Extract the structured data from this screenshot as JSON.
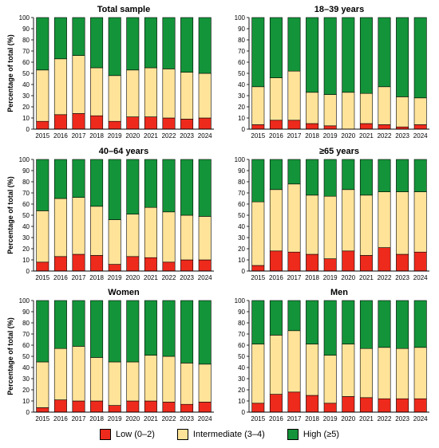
{
  "colors": {
    "low": "#ee2a1c",
    "intermediate": "#ffe399",
    "high": "#14943a"
  },
  "legend": [
    {
      "key": "low",
      "label": "Low (0–2)"
    },
    {
      "key": "intermediate",
      "label": "Intermediate (3–4)"
    },
    {
      "key": "high",
      "label": "High (≥5)"
    }
  ],
  "chart_data": [
    {
      "type": "bar",
      "stacked": true,
      "title": "Total sample",
      "ylabel": "Percentage of total (%)",
      "categories": [
        "2015",
        "2016",
        "2017",
        "2018",
        "2019",
        "2020",
        "2021",
        "2022",
        "2023",
        "2024"
      ],
      "ylim": [
        0,
        100
      ],
      "yticks": [
        0,
        10,
        20,
        30,
        40,
        50,
        60,
        70,
        80,
        90,
        100
      ],
      "series": [
        {
          "name": "Low (0–2)",
          "key": "low",
          "values": [
            7,
            13,
            14,
            12,
            7,
            11,
            11,
            10,
            9,
            10
          ]
        },
        {
          "name": "Intermediate (3–4)",
          "key": "intermediate",
          "values": [
            46,
            50,
            52,
            43,
            41,
            42,
            44,
            44,
            42,
            40
          ]
        },
        {
          "name": "High (≥5)",
          "key": "high",
          "values": [
            47,
            37,
            34,
            45,
            52,
            47,
            45,
            46,
            49,
            50
          ]
        }
      ]
    },
    {
      "type": "bar",
      "stacked": true,
      "title": "18–39 years",
      "ylabel": "",
      "categories": [
        "2015",
        "2016",
        "2017",
        "2018",
        "2019",
        "2020",
        "2021",
        "2022",
        "2023",
        "2024"
      ],
      "ylim": [
        0,
        100
      ],
      "yticks": [
        0,
        10,
        20,
        30,
        40,
        50,
        60,
        70,
        80,
        90,
        100
      ],
      "series": [
        {
          "name": "Low (0–2)",
          "key": "low",
          "values": [
            4,
            8,
            8,
            5,
            3,
            0,
            5,
            4,
            2,
            4
          ]
        },
        {
          "name": "Intermediate (3–4)",
          "key": "intermediate",
          "values": [
            34,
            38,
            44,
            28,
            28,
            33,
            27,
            34,
            27,
            24
          ]
        },
        {
          "name": "High (≥5)",
          "key": "high",
          "values": [
            62,
            54,
            48,
            67,
            69,
            67,
            68,
            62,
            71,
            72
          ]
        }
      ]
    },
    {
      "type": "bar",
      "stacked": true,
      "title": "40–64 years",
      "ylabel": "Percentage of total (%)",
      "categories": [
        "2015",
        "2016",
        "2017",
        "2018",
        "2019",
        "2020",
        "2021",
        "2022",
        "2023",
        "2024"
      ],
      "ylim": [
        0,
        100
      ],
      "yticks": [
        0,
        10,
        20,
        30,
        40,
        50,
        60,
        70,
        80,
        90,
        100
      ],
      "series": [
        {
          "name": "Low (0–2)",
          "key": "low",
          "values": [
            8,
            13,
            15,
            14,
            6,
            13,
            12,
            8,
            10,
            10
          ]
        },
        {
          "name": "Intermediate (3–4)",
          "key": "intermediate",
          "values": [
            46,
            52,
            51,
            44,
            40,
            38,
            45,
            45,
            40,
            39
          ]
        },
        {
          "name": "High (≥5)",
          "key": "high",
          "values": [
            46,
            35,
            34,
            42,
            54,
            49,
            43,
            47,
            50,
            51
          ]
        }
      ]
    },
    {
      "type": "bar",
      "stacked": true,
      "title": "≥65 years",
      "ylabel": "",
      "categories": [
        "2015",
        "2016",
        "2017",
        "2018",
        "2019",
        "2020",
        "2021",
        "2022",
        "2023",
        "2024"
      ],
      "ylim": [
        0,
        100
      ],
      "yticks": [
        0,
        10,
        20,
        30,
        40,
        50,
        60,
        70,
        80,
        90,
        100
      ],
      "series": [
        {
          "name": "Low (0–2)",
          "key": "low",
          "values": [
            5,
            18,
            17,
            15,
            11,
            18,
            14,
            21,
            15,
            17
          ]
        },
        {
          "name": "Intermediate (3–4)",
          "key": "intermediate",
          "values": [
            57,
            55,
            61,
            53,
            56,
            55,
            54,
            50,
            56,
            54
          ]
        },
        {
          "name": "High (≥5)",
          "key": "high",
          "values": [
            38,
            27,
            22,
            32,
            33,
            27,
            32,
            29,
            29,
            29
          ]
        }
      ]
    },
    {
      "type": "bar",
      "stacked": true,
      "title": "Women",
      "ylabel": "Percentage of total (%)",
      "categories": [
        "2015",
        "2016",
        "2017",
        "2018",
        "2019",
        "2020",
        "2021",
        "2022",
        "2023",
        "2024"
      ],
      "ylim": [
        0,
        100
      ],
      "yticks": [
        0,
        10,
        20,
        30,
        40,
        50,
        60,
        70,
        80,
        90,
        100
      ],
      "series": [
        {
          "name": "Low (0–2)",
          "key": "low",
          "values": [
            4,
            11,
            10,
            10,
            6,
            10,
            10,
            9,
            7,
            9
          ]
        },
        {
          "name": "Intermediate (3–4)",
          "key": "intermediate",
          "values": [
            41,
            46,
            49,
            39,
            39,
            35,
            41,
            41,
            37,
            34
          ]
        },
        {
          "name": "High (≥5)",
          "key": "high",
          "values": [
            55,
            43,
            41,
            51,
            55,
            55,
            49,
            50,
            56,
            57
          ]
        }
      ]
    },
    {
      "type": "bar",
      "stacked": true,
      "title": "Men",
      "ylabel": "",
      "categories": [
        "2015",
        "2016",
        "2017",
        "2018",
        "2019",
        "2020",
        "2021",
        "2022",
        "2023",
        "2024"
      ],
      "ylim": [
        0,
        100
      ],
      "yticks": [
        0,
        10,
        20,
        30,
        40,
        50,
        60,
        70,
        80,
        90,
        100
      ],
      "series": [
        {
          "name": "Low (0–2)",
          "key": "low",
          "values": [
            8,
            16,
            18,
            15,
            8,
            14,
            13,
            12,
            12,
            12
          ]
        },
        {
          "name": "Intermediate (3–4)",
          "key": "intermediate",
          "values": [
            53,
            53,
            55,
            46,
            43,
            47,
            44,
            46,
            45,
            46
          ]
        },
        {
          "name": "High (≥5)",
          "key": "high",
          "values": [
            39,
            31,
            27,
            39,
            49,
            39,
            43,
            42,
            43,
            42
          ]
        }
      ]
    }
  ]
}
